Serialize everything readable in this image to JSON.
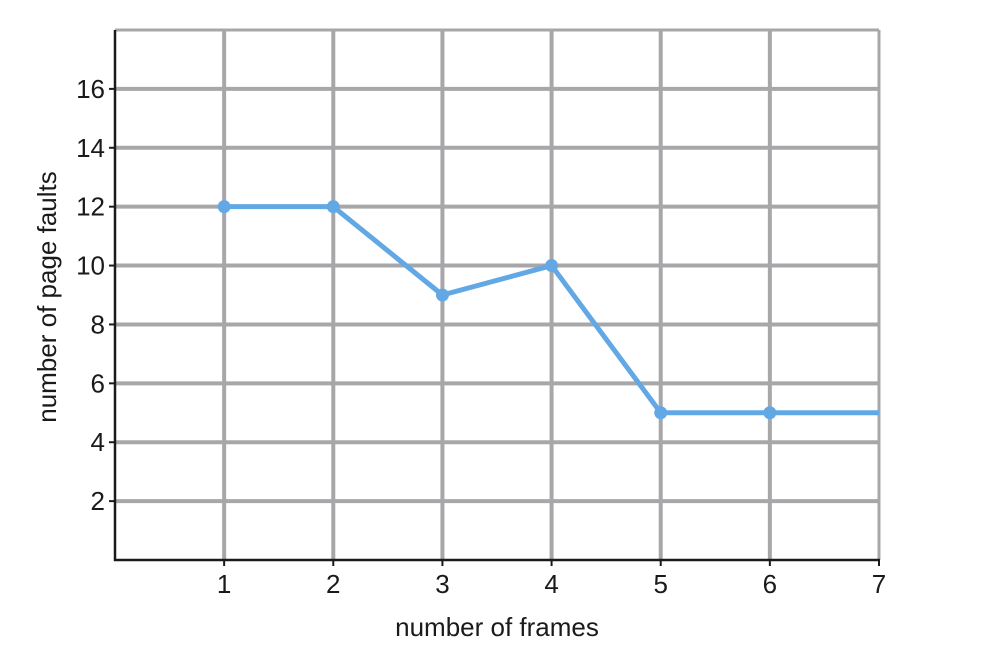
{
  "chart_data": {
    "type": "line",
    "title": "",
    "xlabel": "number of frames",
    "ylabel": "number of page faults",
    "x": [
      1,
      2,
      3,
      4,
      5,
      6,
      7
    ],
    "series": [
      {
        "values": [
          12,
          12,
          9,
          10,
          5,
          5,
          5
        ],
        "markers": [
          true,
          true,
          true,
          true,
          true,
          true,
          false
        ]
      }
    ],
    "xlim": [
      0,
      7
    ],
    "ylim": [
      0,
      18
    ],
    "x_ticks": [
      1,
      2,
      3,
      4,
      5,
      6,
      7
    ],
    "y_ticks": [
      2,
      4,
      6,
      8,
      10,
      12,
      14,
      16
    ],
    "grid": true,
    "legend": "none",
    "colors": {
      "line": "#62a8e5",
      "grid": "#a7a7a9",
      "axis": "#1a1a1a"
    }
  }
}
